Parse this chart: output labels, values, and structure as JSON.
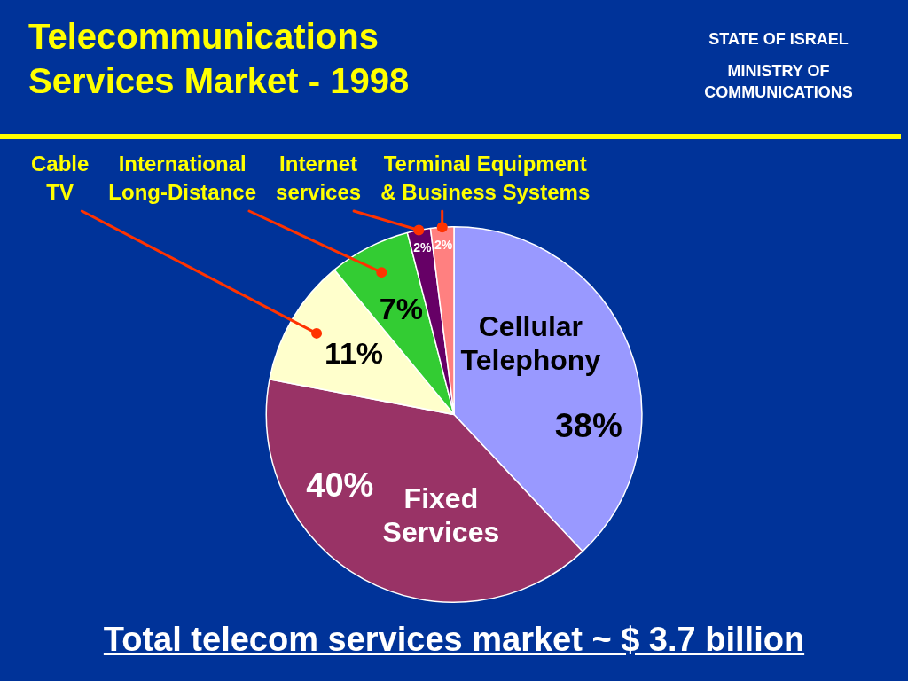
{
  "chart_data": {
    "type": "pie",
    "title": "Telecommunications Services Market - 1998",
    "categories": [
      "Cellular Telephony",
      "Fixed Services",
      "Cable TV",
      "International Long-Distance",
      "Internet services",
      "Terminal Equipment & Business Systems"
    ],
    "values": [
      38,
      40,
      11,
      7,
      2,
      2
    ],
    "colors": [
      "#9999ff",
      "#993366",
      "#ffffcc",
      "#33cc33",
      "#660066",
      "#ff8080"
    ],
    "value_labels": [
      "38%",
      "40%",
      "11%",
      "7%",
      "2%",
      "2%"
    ],
    "annotations": [
      "STATE OF ISRAEL",
      "MINISTRY OF COMMUNICATIONS",
      "Total telecom services market ~ $ 3.7 billion"
    ]
  }
}
